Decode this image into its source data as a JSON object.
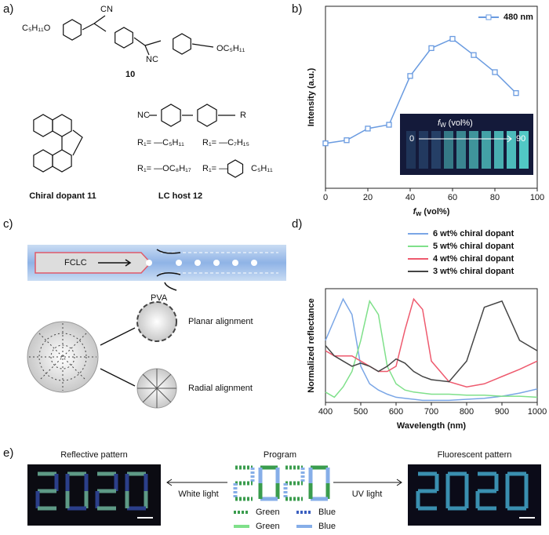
{
  "labels": {
    "a": "a)",
    "b": "b)",
    "c": "c)",
    "d": "d)",
    "e": "e)"
  },
  "panel_a": {
    "compound_10": {
      "left": "C₅H₁₁O",
      "cn_top": "CN",
      "cn_bottom": "NC",
      "right": "OC₅H₁₁",
      "name": "10"
    },
    "chiral_dopant": {
      "name": "Chiral dopant 11"
    },
    "lc_host": {
      "nc": "NC",
      "r": "R",
      "r1": "R₁= —C₅H₁₁",
      "r2": "R₁= —C₇H₁₅",
      "r3": "R₁= —OC₈H₁₇",
      "r4": "R₁= —",
      "r4_tail": "C₅H₁₁",
      "name": "LC host 12"
    }
  },
  "panel_c": {
    "fclc": "FCLC",
    "pva": "PVA",
    "planar": "Planar alignment",
    "radial": "Radial alignment"
  },
  "panel_e": {
    "reflective": "Reflective pattern",
    "program": "Program",
    "fluorescent": "Fluorescent pattern",
    "white": "White light",
    "uv": "UV light",
    "legend": [
      "Green",
      "Blue",
      "Green",
      "Blue"
    ]
  },
  "chart_data": [
    {
      "type": "line",
      "y_label": "Intensity (a.u.)",
      "x_label_main": "f",
      "x_label_sub": "w",
      "x_label_rest": " (vol%)",
      "x": [
        0,
        10,
        20,
        30,
        40,
        50,
        60,
        70,
        80,
        90
      ],
      "series": [
        {
          "name": "480 nm",
          "color": "#6a9be0",
          "values": [
            24.7,
            26.4,
            32.8,
            34.9,
            61.7,
            77.0,
            82.1,
            73.2,
            63.8,
            52.3
          ]
        }
      ],
      "xlim": [
        0,
        100
      ],
      "xticks": [
        0,
        20,
        40,
        60,
        80,
        100
      ],
      "ylim": [
        0,
        100
      ],
      "markers": true,
      "inset": {
        "label_main": "f",
        "label_sub": "W",
        "label_rest": " (vol%)",
        "start": "0",
        "end": "90"
      }
    },
    {
      "type": "line",
      "y_label": "Normalized reflectance",
      "x_label": "Wavelength (nm)",
      "x": [
        400,
        425,
        450,
        475,
        500,
        525,
        550,
        575,
        600,
        625,
        650,
        675,
        700,
        750,
        800,
        850,
        900,
        950,
        1000
      ],
      "series": [
        {
          "name": "6 wt% chiral dopant",
          "color": "#7aa6e6",
          "values": [
            0.6,
            0.8,
            1.0,
            0.85,
            0.35,
            0.18,
            0.12,
            0.08,
            0.05,
            0.04,
            0.03,
            0.02,
            0.02,
            0.02,
            0.03,
            0.04,
            0.06,
            0.09,
            0.13
          ]
        },
        {
          "name": "5 wt% chiral dopant",
          "color": "#7fe08a",
          "values": [
            0.1,
            0.05,
            0.15,
            0.3,
            0.6,
            0.98,
            0.85,
            0.35,
            0.18,
            0.12,
            0.1,
            0.09,
            0.08,
            0.08,
            0.07,
            0.07,
            0.06,
            0.06,
            0.05
          ]
        },
        {
          "name": "4 wt% chiral dopant",
          "color": "#ee5a6e",
          "values": [
            0.5,
            0.45,
            0.45,
            0.45,
            0.4,
            0.35,
            0.3,
            0.3,
            0.35,
            0.7,
            1.0,
            0.9,
            0.4,
            0.2,
            0.15,
            0.18,
            0.25,
            0.32,
            0.4
          ]
        },
        {
          "name": "3 wt% chiral dopant",
          "color": "#444444",
          "values": [
            0.55,
            0.45,
            0.4,
            0.35,
            0.38,
            0.35,
            0.3,
            0.35,
            0.42,
            0.38,
            0.3,
            0.25,
            0.22,
            0.2,
            0.4,
            0.92,
            0.98,
            0.6,
            0.5
          ]
        }
      ],
      "xlim": [
        400,
        1000
      ],
      "xticks": [
        400,
        500,
        600,
        700,
        800,
        900,
        1000
      ],
      "ylim": [
        0,
        1.1
      ],
      "markers": false
    }
  ]
}
